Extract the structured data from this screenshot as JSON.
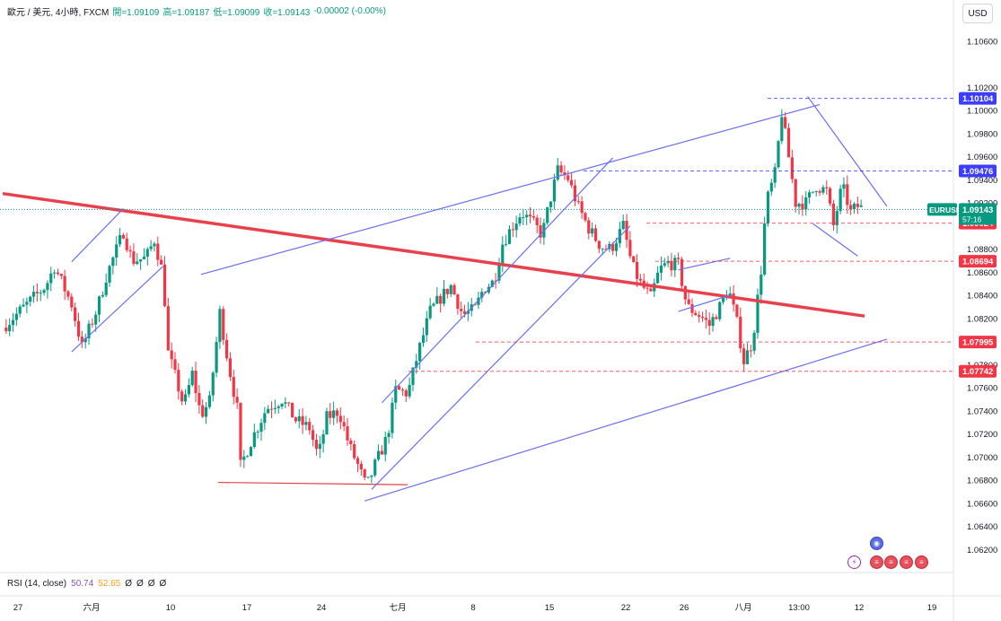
{
  "legend": {
    "symbol": "歐元 / 美元, 4小時, FXCM",
    "open": "開=1.09109",
    "high": "高=1.09187",
    "low": "低=1.09099",
    "close": "收=1.09143",
    "change": "-0.00002 (-0.00%)"
  },
  "currency_button": "USD",
  "rsi": {
    "label": "RSI (14, close)",
    "value1": "50.74",
    "value2": "52.65",
    "placeholders": [
      "Ø",
      "Ø",
      "Ø",
      "Ø"
    ]
  },
  "colors": {
    "up": "#089981",
    "down": "#f23645",
    "trendline": "#6a6ff0",
    "major_line": "#e8414e",
    "price_label": "#089981",
    "level_blue": "#3d3dff",
    "level_red": "#f23645"
  },
  "chart_data": {
    "type": "candlestick",
    "symbol": "EURUSD",
    "timeframe": "4H",
    "y_axis_labels": [
      "1.10600",
      "1.10200",
      "1.10000",
      "1.09800",
      "1.09600",
      "1.09400",
      "1.09200",
      "1.08800",
      "1.08600",
      "1.08400",
      "1.08200",
      "1.07800",
      "1.07600",
      "1.07400",
      "1.07200",
      "1.07000",
      "1.06800",
      "1.06600",
      "1.06400",
      "1.06200"
    ],
    "ylim": [
      1.06,
      1.108
    ],
    "x_axis_labels": [
      "27",
      "六月",
      "10",
      "17",
      "24",
      "七月",
      "8",
      "15",
      "22",
      "26",
      "八月",
      "13:00",
      "12",
      "19"
    ],
    "current_price": {
      "symbol_label": "EURUSD",
      "price": "1.09143",
      "countdown": "57:16"
    },
    "horizontal_levels": [
      {
        "label": "1.10104",
        "price": 1.10104,
        "color": "blue"
      },
      {
        "label": "1.09476",
        "price": 1.09476,
        "color": "blue"
      },
      {
        "label": "1.09024",
        "price": 1.09024,
        "color": "red"
      },
      {
        "label": "1.08694",
        "price": 1.08694,
        "color": "red"
      },
      {
        "label": "1.07995",
        "price": 1.07995,
        "color": "red"
      },
      {
        "label": "1.07742",
        "price": 1.07742,
        "color": "red"
      }
    ],
    "price_path": [
      [
        0,
        1.0812
      ],
      [
        2.5,
        1.0848
      ],
      [
        3,
        1.0865
      ],
      [
        4,
        1.0832
      ],
      [
        4.6,
        1.0795
      ],
      [
        5.5,
        1.0829
      ],
      [
        6,
        1.0856
      ],
      [
        7,
        1.0895
      ],
      [
        7.5,
        1.087
      ],
      [
        8.3,
        1.0872
      ],
      [
        8.8,
        1.0888
      ],
      [
        9.3,
        1.0858
      ],
      [
        9.6,
        1.079
      ],
      [
        10.1,
        1.0765
      ],
      [
        10.5,
        1.0744
      ],
      [
        11,
        1.0772
      ],
      [
        11.5,
        1.0736
      ],
      [
        12,
        1.0748
      ],
      [
        12.6,
        1.0825
      ],
      [
        13.1,
        1.078
      ],
      [
        13.6,
        1.0742
      ],
      [
        13.8,
        1.0692
      ],
      [
        14.5,
        1.0717
      ],
      [
        15.3,
        1.0742
      ],
      [
        16.2,
        1.075
      ],
      [
        17,
        1.0732
      ],
      [
        17.8,
        1.0725
      ],
      [
        18.3,
        1.07
      ],
      [
        18.8,
        1.0734
      ],
      [
        19.5,
        1.074
      ],
      [
        20.1,
        1.071
      ],
      [
        20.6,
        1.0693
      ],
      [
        21.1,
        1.0674
      ],
      [
        21.6,
        1.0693
      ],
      [
        22.3,
        1.0717
      ],
      [
        22.8,
        1.0758
      ],
      [
        23.5,
        1.0755
      ],
      [
        24.1,
        1.079
      ],
      [
        24.8,
        1.0826
      ],
      [
        25.3,
        1.0836
      ],
      [
        26,
        1.0848
      ],
      [
        26.7,
        1.0823
      ],
      [
        27.4,
        1.0828
      ],
      [
        27.9,
        1.0846
      ],
      [
        28.5,
        1.0852
      ],
      [
        29,
        1.0885
      ],
      [
        29.5,
        1.0898
      ],
      [
        30.1,
        1.0912
      ],
      [
        30.9,
        1.09
      ],
      [
        31.3,
        1.0892
      ],
      [
        31.7,
        1.0919
      ],
      [
        32.2,
        1.0948
      ],
      [
        32.8,
        1.0941
      ],
      [
        33.4,
        1.0916
      ],
      [
        34,
        1.0898
      ],
      [
        34.7,
        1.0882
      ],
      [
        35.3,
        1.088
      ],
      [
        36,
        1.09
      ],
      [
        36.5,
        1.0866
      ],
      [
        37,
        1.085
      ],
      [
        37.6,
        1.0838
      ],
      [
        38.1,
        1.0862
      ],
      [
        38.6,
        1.0868
      ],
      [
        39.2,
        1.0866
      ],
      [
        39.7,
        1.083
      ],
      [
        40.5,
        1.0822
      ],
      [
        41,
        1.0814
      ],
      [
        41.6,
        1.083
      ],
      [
        42.1,
        1.0846
      ],
      [
        42.6,
        1.0816
      ],
      [
        43,
        1.0783
      ],
      [
        43.5,
        1.08
      ],
      [
        44,
        1.0862
      ],
      [
        44.3,
        1.092
      ],
      [
        44.8,
        1.0945
      ],
      [
        45.2,
        1.0998
      ],
      [
        45.7,
        1.095
      ],
      [
        46,
        1.092
      ],
      [
        46.6,
        1.092
      ],
      [
        47.2,
        1.0935
      ],
      [
        47.8,
        1.093
      ],
      [
        48.2,
        1.09
      ],
      [
        48.7,
        1.0935
      ],
      [
        49.2,
        1.0912
      ],
      [
        49.6,
        1.0917
      ],
      [
        50,
        1.0914
      ]
    ],
    "drawings": [
      {
        "type": "trendline",
        "from": [
          0,
          1.0928
        ],
        "to": [
          50,
          1.0822
        ],
        "style": "thick red"
      },
      {
        "type": "trendline",
        "from": [
          11.5,
          1.0858
        ],
        "to": [
          47.4,
          1.1005
        ],
        "style": "channel top"
      },
      {
        "type": "trendline",
        "from": [
          21,
          1.0662
        ],
        "to": [
          51.3,
          1.0802
        ],
        "style": "channel bottom"
      },
      {
        "type": "trendline",
        "from": [
          12.5,
          1.0678
        ],
        "to": [
          23.5,
          1.0676
        ],
        "style": "red support"
      },
      {
        "type": "trendline",
        "from": [
          4,
          1.0869
        ],
        "to": [
          7,
          1.0915
        ],
        "style": "small channel"
      },
      {
        "type": "trendline",
        "from": [
          4,
          1.0791
        ],
        "to": [
          9.3,
          1.0865
        ],
        "style": "small channel"
      },
      {
        "type": "trendline",
        "from": [
          22,
          1.0747
        ],
        "to": [
          35.4,
          1.0959
        ],
        "style": "rising channel top"
      },
      {
        "type": "trendline",
        "from": [
          21.4,
          1.0672
        ],
        "to": [
          36.4,
          1.09
        ],
        "style": "rising channel bottom"
      },
      {
        "type": "trendline",
        "from": [
          39.2,
          1.0862
        ],
        "to": [
          42.2,
          1.0872
        ],
        "style": "flag top"
      },
      {
        "type": "trendline",
        "from": [
          39.2,
          1.0826
        ],
        "to": [
          42.2,
          1.084
        ],
        "style": "flag bottom"
      },
      {
        "type": "trendline",
        "from": [
          46.7,
          1.1012
        ],
        "to": [
          51.3,
          1.0917
        ],
        "style": "wedge top"
      },
      {
        "type": "trendline",
        "from": [
          47,
          1.0902
        ],
        "to": [
          49.6,
          1.0874
        ],
        "style": "wedge bottom"
      }
    ]
  },
  "events": [
    {
      "icon": "flag-icon",
      "kind": "blue"
    },
    {
      "icon": "bolt-icon",
      "kind": "bolt"
    },
    {
      "icon": "flag-icon",
      "kind": "red"
    },
    {
      "icon": "flag-icon",
      "kind": "red"
    },
    {
      "icon": "flag-icon",
      "kind": "red"
    },
    {
      "icon": "flag-icon",
      "kind": "red"
    }
  ]
}
